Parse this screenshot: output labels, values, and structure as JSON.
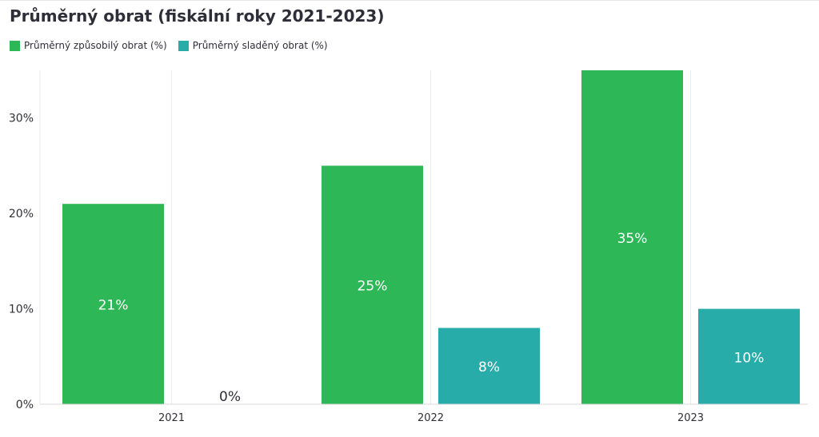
{
  "chart_data": {
    "type": "bar",
    "title": "Průměrný obrat (fiskální roky 2021-2023)",
    "categories": [
      "2021",
      "2022",
      "2023"
    ],
    "series": [
      {
        "name": "Průměrný způsobilý obrat (%)",
        "values": [
          21,
          25,
          35
        ],
        "labels": [
          "21%",
          "25%",
          "35%"
        ],
        "color": "#2db757"
      },
      {
        "name": "Průměrný sladěný obrat (%)",
        "values": [
          0,
          8,
          10
        ],
        "labels": [
          "0%",
          "8%",
          "10%"
        ],
        "color": "#27acaa"
      }
    ],
    "y_ticks": [
      {
        "value": 0,
        "label": "0%"
      },
      {
        "value": 10,
        "label": "10%"
      },
      {
        "value": 20,
        "label": "20%"
      },
      {
        "value": 30,
        "label": "30%"
      }
    ],
    "ylim": [
      0,
      35
    ],
    "grid": {
      "vertical": true,
      "horizontal": false
    },
    "legend": "top-left"
  }
}
